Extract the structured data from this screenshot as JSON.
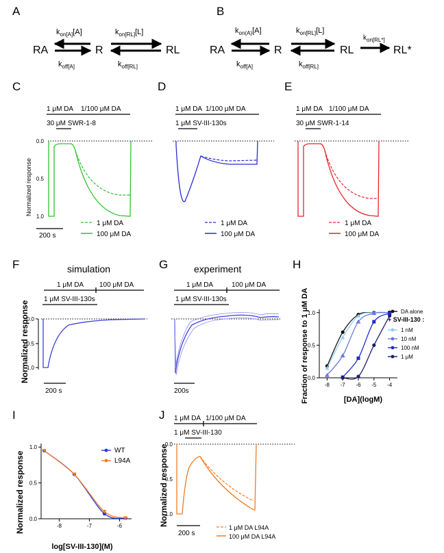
{
  "panel_letters": {
    "A": "A",
    "B": "B",
    "C": "C",
    "D": "D",
    "E": "E",
    "F": "F",
    "G": "G",
    "H": "H",
    "I": "I",
    "J": "J"
  },
  "scheme_a": {
    "left_state": "RA",
    "center_state": "R",
    "right_state": "RL",
    "kon_a": "k",
    "kon_a_sub": "on[A]",
    "kon_a_tail": "[A]",
    "koff_a": "k",
    "koff_a_sub": "off[A]",
    "kon_rl": "k",
    "kon_rl_sub": "on[RL]",
    "kon_rl_tail": "[L]",
    "koff_rl": "k",
    "koff_rl_sub": "off[RL]"
  },
  "scheme_b": {
    "left_state": "RA",
    "center_state": "R",
    "right_state": "RL",
    "final_state": "RL*",
    "kon_a": "k",
    "kon_a_sub": "on(A)",
    "kon_a_tail": "[A]",
    "koff_a": "k",
    "koff_a_sub": "off[A]",
    "kon_rl": "k",
    "kon_rl_sub": "on[RL]",
    "kon_rl_tail": "[L]",
    "koff_rl": "k",
    "koff_rl_sub": "off[RL]",
    "kon_star": "k",
    "kon_star_sub": "on[RL*]"
  },
  "panel_c": {
    "bar_da1": "1 μM DA",
    "bar_da2": "1/100 μM DA",
    "bar_drug": "30 μM SWR-1-8",
    "ylabel": "Normalized response",
    "yticks": [
      "0.0",
      "0.5",
      "1.0"
    ],
    "scale_label": "200 s",
    "legend_dashed": "1 μM DA",
    "legend_solid": "100 μM DA",
    "color": "#2ec42e"
  },
  "panel_d": {
    "bar_da1": "1 μM DA",
    "bar_da2": "1/100 μM DA",
    "bar_drug": "1 μM SV-III-130s",
    "legend_dashed": "1 μM DA",
    "legend_solid": "100 μM DA",
    "color": "#2a2ad6"
  },
  "panel_e": {
    "bar_da1": "1 μM DA",
    "bar_da2": "1/100 μM DA",
    "bar_drug": "30 μM SWR-1-14",
    "legend_dashed": "1 μM DA",
    "legend_solid": "100 μM DA",
    "color": "#e8222a"
  },
  "panel_f": {
    "title": "simulation",
    "bar_da1": "1 μM DA",
    "bar_da2": "100 μM DA",
    "bar_drug": "1 μM SV-III-130s",
    "ylabel": "Normalized response",
    "yticks": [
      "0.0",
      "0.5",
      "1.0"
    ],
    "scale_label": "200 s",
    "color": "#3d3ddd"
  },
  "panel_g": {
    "title": "experiment",
    "bar_da1": "1 μM DA",
    "bar_da2": "100 μM DA",
    "bar_drug": "1 μM SV-III-130s",
    "scale_label": "200s",
    "color": "#3d3ddd"
  },
  "panel_h": {
    "ylabel": "Fraction of response to 1 μM DA",
    "xlabel": "[DA](logM)",
    "legend_title": "+ SV-III-130 :",
    "chart_data": {
      "type": "line",
      "xlabel": "[DA](logM)",
      "ylabel": "Fraction of response to 1 μM DA",
      "xlim": [
        -8.5,
        -3.5
      ],
      "ylim": [
        0,
        1.05
      ],
      "xticks": [
        "-8",
        "-7",
        "-6",
        "-5",
        "-4"
      ],
      "yticks": [
        "0.0",
        "0.5",
        "1.0"
      ],
      "series": [
        {
          "name": "DA alone",
          "color": "#111111",
          "x": [
            -8,
            -7,
            -6,
            -5,
            -4
          ],
          "y": [
            0.18,
            0.7,
            0.97,
            1.0,
            1.0
          ]
        },
        {
          "name": "1 nM",
          "color": "#8fd0ee",
          "x": [
            -8,
            -7,
            -6,
            -5,
            -4
          ],
          "y": [
            0.15,
            0.62,
            0.95,
            1.0,
            1.0
          ]
        },
        {
          "name": "10 nM",
          "color": "#6b78e0",
          "x": [
            -8,
            -7,
            -6,
            -5,
            -4
          ],
          "y": [
            0.04,
            0.34,
            0.86,
            0.99,
            1.0
          ]
        },
        {
          "name": "100 nM",
          "color": "#1f2ad0",
          "x": [
            -7,
            -6,
            -5,
            -4
          ],
          "y": [
            0.01,
            0.3,
            0.86,
            0.99
          ]
        },
        {
          "name": "1 μM",
          "color": "#1a1f6e",
          "x": [
            -7,
            -6,
            -5,
            -4
          ],
          "y": [
            0.0,
            0.02,
            0.5,
            0.95
          ]
        }
      ]
    }
  },
  "panel_i": {
    "ylabel": "Normalized response",
    "xlabel": "log[SV-III-130](M)",
    "chart_data": {
      "type": "line",
      "xlabel": "log[SV-III-130](M)",
      "ylabel": "Normalized response",
      "xlim": [
        -8.6,
        -5.6
      ],
      "ylim": [
        0,
        1.05
      ],
      "xticks": [
        "-8",
        "-7",
        "-6"
      ],
      "yticks": [
        "0.0",
        "0.5",
        "1.0"
      ],
      "series": [
        {
          "name": "WT",
          "color": "#2a35d8",
          "x": [
            -8.5,
            -7.5,
            -6.5,
            -5.8
          ],
          "y": [
            0.95,
            0.62,
            0.07,
            0.01
          ]
        },
        {
          "name": "L94A",
          "color": "#f07b22",
          "x": [
            -8.5,
            -7.5,
            -6.5,
            -5.8
          ],
          "y": [
            0.95,
            0.62,
            0.1,
            0.01
          ]
        }
      ]
    }
  },
  "panel_j": {
    "bar_da1": "1 μM DA",
    "bar_da2": "1/100 μM DA",
    "bar_drug": "1 μM SV-III-130",
    "ylabel": "Normalized response",
    "yticks": [
      "0.0",
      "0.5",
      "1.0"
    ],
    "scale_label": "200 s",
    "legend_dashed": "1 μM DA L94A",
    "legend_solid": "100 μM DA L94A",
    "color": "#f07b22"
  }
}
